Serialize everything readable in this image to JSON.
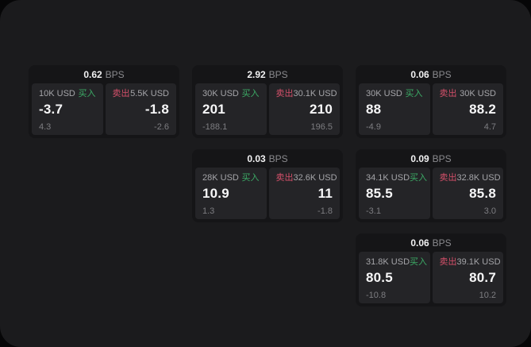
{
  "labels": {
    "bps_unit": "BPS",
    "buy": "买入",
    "sell": "卖出"
  },
  "colors": {
    "buy_green": "#3cab66",
    "sell_red": "#d4506a",
    "window_bg": "#1b1b1d",
    "card_bg": "#151517",
    "panel_bg": "#242427"
  },
  "cards": [
    {
      "bps": "0.62",
      "buy": {
        "amount": "10K USD",
        "price": "-3.7",
        "delta": "4.3"
      },
      "sell": {
        "amount": "5.5K USD",
        "price": "-1.8",
        "delta": "-2.6"
      }
    },
    {
      "bps": "2.92",
      "buy": {
        "amount": "30K USD",
        "price": "201",
        "delta": "-188.1"
      },
      "sell": {
        "amount": "30.1K USD",
        "price": "210",
        "delta": "196.5"
      }
    },
    {
      "bps": "0.06",
      "buy": {
        "amount": "30K USD",
        "price": "88",
        "delta": "-4.9"
      },
      "sell": {
        "amount": "30K USD",
        "price": "88.2",
        "delta": "4.7"
      }
    },
    {
      "bps": "0.03",
      "buy": {
        "amount": "28K USD",
        "price": "10.9",
        "delta": "1.3"
      },
      "sell": {
        "amount": "32.6K USD",
        "price": "11",
        "delta": "-1.8"
      }
    },
    {
      "bps": "0.09",
      "buy": {
        "amount": "34.1K USD",
        "price": "85.5",
        "delta": "-3.1"
      },
      "sell": {
        "amount": "32.8K USD",
        "price": "85.8",
        "delta": "3.0"
      }
    },
    {
      "bps": "0.06",
      "buy": {
        "amount": "31.8K USD",
        "price": "80.5",
        "delta": "-10.8"
      },
      "sell": {
        "amount": "39.1K USD",
        "price": "80.7",
        "delta": "10.2"
      }
    }
  ]
}
